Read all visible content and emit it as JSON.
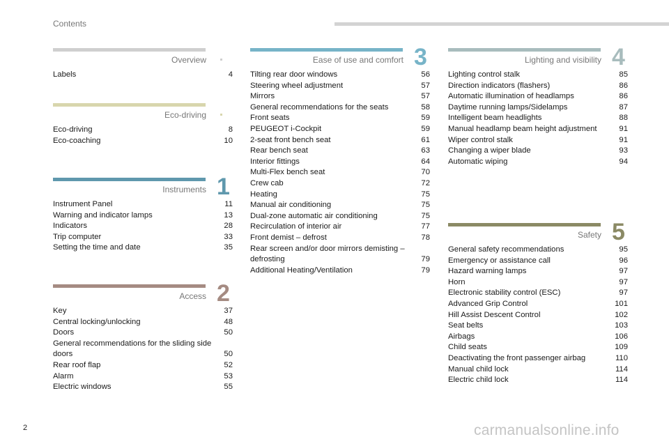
{
  "header": {
    "title": "Contents"
  },
  "page_number": "2",
  "watermark": "carmanualsonline.info",
  "sections": {
    "overview": {
      "title": "Overview",
      "number": "",
      "color": "#cfcfcf",
      "entries": [
        {
          "title": "Labels",
          "page": "4"
        }
      ]
    },
    "eco": {
      "title": "Eco-driving",
      "number": "",
      "color": "#d8d6ad",
      "entries": [
        {
          "title": "Eco-driving",
          "page": "8"
        },
        {
          "title": "Eco-coaching",
          "page": "10"
        }
      ]
    },
    "instruments": {
      "title": "Instruments",
      "number": "1",
      "color": "#5f98ad",
      "entries": [
        {
          "title": "Instrument Panel",
          "page": "11"
        },
        {
          "title": "Warning and indicator lamps",
          "page": "13"
        },
        {
          "title": "Indicators",
          "page": "28"
        },
        {
          "title": "Trip computer",
          "page": "33"
        },
        {
          "title": "Setting the time and date",
          "page": "35"
        }
      ]
    },
    "access": {
      "title": "Access",
      "number": "2",
      "color": "#a58b82",
      "entries": [
        {
          "title": "Key",
          "page": "37"
        },
        {
          "title": "Central locking/unlocking",
          "page": "48"
        },
        {
          "title": "Doors",
          "page": "50"
        },
        {
          "title": "General recommendations for the sliding side doors",
          "page": "50"
        },
        {
          "title": "Rear roof flap",
          "page": "52"
        },
        {
          "title": "Alarm",
          "page": "53"
        },
        {
          "title": "Electric windows",
          "page": "55"
        }
      ]
    },
    "ease": {
      "title": "Ease of use and comfort",
      "number": "3",
      "color": "#77b4c8",
      "entries": [
        {
          "title": "Tilting rear door windows",
          "page": "56"
        },
        {
          "title": "Steering wheel adjustment",
          "page": "57"
        },
        {
          "title": "Mirrors",
          "page": "57"
        },
        {
          "title": "General recommendations for the seats",
          "page": "58"
        },
        {
          "title": "Front seats",
          "page": "59"
        },
        {
          "title": "PEUGEOT i-Cockpit",
          "page": "59"
        },
        {
          "title": "2-seat front bench seat",
          "page": "61"
        },
        {
          "title": "Rear bench seat",
          "page": "63"
        },
        {
          "title": "Interior fittings",
          "page": "64"
        },
        {
          "title": "Multi-Flex bench seat",
          "page": "70"
        },
        {
          "title": "Crew cab",
          "page": "72"
        },
        {
          "title": "Heating",
          "page": "75"
        },
        {
          "title": "Manual air conditioning",
          "page": "75"
        },
        {
          "title": "Dual-zone automatic air conditioning",
          "page": "75"
        },
        {
          "title": "Recirculation of interior air",
          "page": "77"
        },
        {
          "title": "Front demist – defrost",
          "page": "78"
        },
        {
          "title": "Rear screen and/or door mirrors demisting – defrosting",
          "page": "79"
        },
        {
          "title": "Additional Heating/Ventilation",
          "page": "79"
        }
      ]
    },
    "lighting": {
      "title": "Lighting and visibility",
      "number": "4",
      "color": "#a8bcbd",
      "entries": [
        {
          "title": "Lighting control stalk",
          "page": "85"
        },
        {
          "title": "Direction indicators (flashers)",
          "page": "86"
        },
        {
          "title": "Automatic illumination of headlamps",
          "page": "86"
        },
        {
          "title": "Daytime running lamps/Sidelamps",
          "page": "87"
        },
        {
          "title": "Intelligent beam headlights",
          "page": "88"
        },
        {
          "title": "Manual headlamp beam height adjustment",
          "page": "91"
        },
        {
          "title": "Wiper control stalk",
          "page": "91"
        },
        {
          "title": "Changing a wiper blade",
          "page": "93"
        },
        {
          "title": "Automatic wiping",
          "page": "94"
        }
      ]
    },
    "safety": {
      "title": "Safety",
      "number": "5",
      "color": "#8b8a65",
      "entries": [
        {
          "title": "General safety recommendations",
          "page": "95"
        },
        {
          "title": "Emergency or assistance call",
          "page": "96"
        },
        {
          "title": "Hazard warning lamps",
          "page": "97"
        },
        {
          "title": "Horn",
          "page": "97"
        },
        {
          "title": "Electronic stability control (ESC)",
          "page": "97"
        },
        {
          "title": "Advanced Grip Control",
          "page": "101"
        },
        {
          "title": "Hill Assist Descent Control",
          "page": "102"
        },
        {
          "title": "Seat belts",
          "page": "103"
        },
        {
          "title": "Airbags",
          "page": "106"
        },
        {
          "title": "Child seats",
          "page": "109"
        },
        {
          "title": "Deactivating the front passenger airbag",
          "page": "110"
        },
        {
          "title": "Manual child lock",
          "page": "114"
        },
        {
          "title": "Electric child lock",
          "page": "114"
        }
      ]
    }
  }
}
